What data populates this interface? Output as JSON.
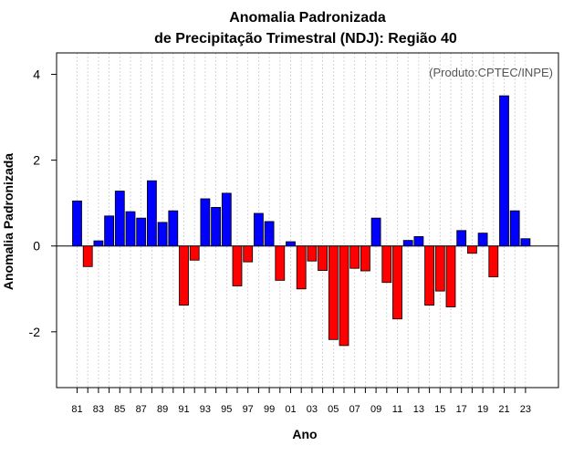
{
  "chart_data": {
    "type": "bar",
    "title_line1": "Anomalia Padronizada",
    "title_line2": "de Precipitação Trimestral (NDJ): Região 40",
    "xlabel": "Ano",
    "ylabel": "Anomalia Padronizada",
    "annotation": "(Produto:CPTEC/INPE)",
    "annotation_position": "top-right",
    "ylim": [
      -3.3,
      4.5
    ],
    "yticks": [
      -2,
      0,
      2,
      4
    ],
    "ytick_labels": [
      "-2",
      "0",
      "2",
      "4"
    ],
    "grid": "vertical-dotted",
    "positive_color": "#0000ff",
    "negative_color": "#ff0000",
    "zero_line_color": "#000000",
    "grid_color": "#cccccc",
    "categories": [
      "81",
      "82",
      "83",
      "84",
      "85",
      "86",
      "87",
      "88",
      "89",
      "90",
      "91",
      "92",
      "93",
      "94",
      "95",
      "96",
      "97",
      "98",
      "99",
      "00",
      "01",
      "02",
      "03",
      "04",
      "05",
      "06",
      "07",
      "08",
      "09",
      "10",
      "11",
      "12",
      "13",
      "14",
      "15",
      "16",
      "17",
      "18",
      "19",
      "20",
      "21",
      "22",
      "23"
    ],
    "xtick_labels": [
      "81",
      "83",
      "85",
      "87",
      "89",
      "91",
      "93",
      "95",
      "97",
      "99",
      "01",
      "03",
      "05",
      "07",
      "09",
      "11",
      "13",
      "15",
      "17",
      "19",
      "21",
      "23"
    ],
    "values": [
      1.05,
      -0.48,
      0.12,
      0.7,
      1.28,
      0.8,
      0.65,
      1.52,
      0.55,
      0.82,
      -1.38,
      -0.33,
      1.1,
      0.9,
      1.23,
      -0.93,
      -0.37,
      0.76,
      0.57,
      -0.8,
      0.1,
      -1.0,
      -0.35,
      -0.57,
      -2.18,
      -2.32,
      -0.52,
      -0.58,
      0.65,
      -0.85,
      -1.7,
      0.13,
      0.22,
      -1.38,
      -1.05,
      -1.42,
      0.36,
      -0.17,
      0.3,
      -0.72,
      3.5,
      0.82,
      0.17
    ]
  }
}
